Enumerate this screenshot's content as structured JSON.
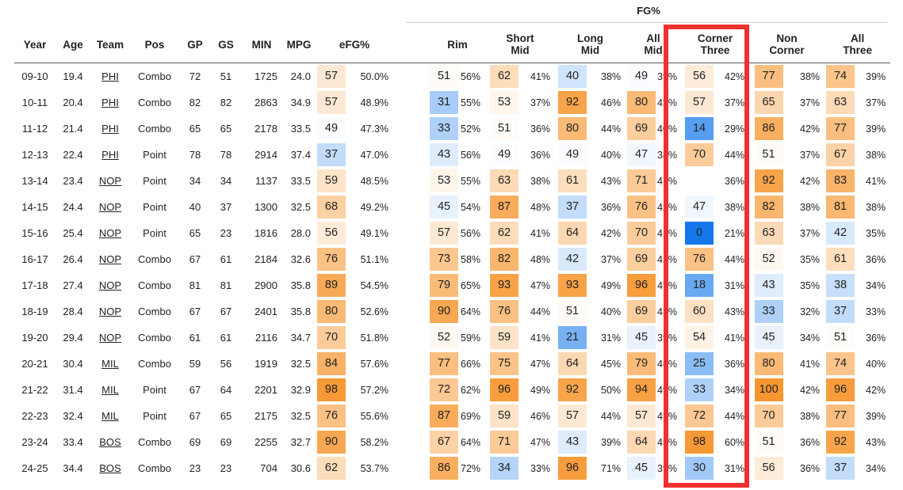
{
  "group_header": "FG%",
  "headers": {
    "year": "Year",
    "age": "Age",
    "team": "Team",
    "pos": "Pos",
    "gp": "GP",
    "gs": "GS",
    "min": "MIN",
    "mpg": "MPG",
    "efg": "eFG%",
    "rim": "Rim",
    "short_mid_1": "Short",
    "short_mid_2": "Mid",
    "long_mid_1": "Long",
    "long_mid_2": "Mid",
    "all_mid_1": "All",
    "all_mid_2": "Mid",
    "corner_three_1": "Corner",
    "corner_three_2": "Three",
    "non_corner_1": "Non",
    "non_corner_2": "Corner",
    "all_three_1": "All",
    "all_three_2": "Three"
  },
  "highlight_color": "#f03030",
  "rows": [
    {
      "year": "09-10",
      "age": "19.4",
      "team": "PHI",
      "pos": "Combo",
      "gp": "72",
      "gs": "51",
      "min": "1725",
      "mpg": "24.0",
      "efg_pctile": 57,
      "efg": "50.0%",
      "rim_pctile": 51,
      "rim": "56%",
      "smid_pctile": 62,
      "smid": "41%",
      "lmid_pctile": 40,
      "lmid": "38%",
      "amid_pctile": 49,
      "amid": "39%",
      "corner_pctile": 56,
      "corner": "42%",
      "noncorner_pctile": 77,
      "noncorner": "38%",
      "allthree_pctile": 74,
      "allthree": "39%"
    },
    {
      "year": "10-11",
      "age": "20.4",
      "team": "PHI",
      "pos": "Combo",
      "gp": "82",
      "gs": "82",
      "min": "2863",
      "mpg": "34.9",
      "efg_pctile": 57,
      "efg": "48.9%",
      "rim_pctile": 31,
      "rim": "55%",
      "smid_pctile": 53,
      "smid": "37%",
      "lmid_pctile": 92,
      "lmid": "46%",
      "amid_pctile": 80,
      "amid": "42%",
      "corner_pctile": 57,
      "corner": "37%",
      "noncorner_pctile": 65,
      "noncorner": "37%",
      "allthree_pctile": 63,
      "allthree": "37%"
    },
    {
      "year": "11-12",
      "age": "21.4",
      "team": "PHI",
      "pos": "Combo",
      "gp": "65",
      "gs": "65",
      "min": "2178",
      "mpg": "33.5",
      "efg_pctile": 49,
      "efg": "47.3%",
      "rim_pctile": 33,
      "rim": "52%",
      "smid_pctile": 51,
      "smid": "36%",
      "lmid_pctile": 80,
      "lmid": "44%",
      "amid_pctile": 69,
      "amid": "40%",
      "corner_pctile": 14,
      "corner": "29%",
      "noncorner_pctile": 86,
      "noncorner": "42%",
      "allthree_pctile": 77,
      "allthree": "39%"
    },
    {
      "year": "12-13",
      "age": "22.4",
      "team": "PHI",
      "pos": "Point",
      "gp": "78",
      "gs": "78",
      "min": "2914",
      "mpg": "37.4",
      "efg_pctile": 37,
      "efg": "47.0%",
      "rim_pctile": 43,
      "rim": "56%",
      "smid_pctile": 49,
      "smid": "36%",
      "lmid_pctile": 49,
      "lmid": "40%",
      "amid_pctile": 47,
      "amid": "38%",
      "corner_pctile": 70,
      "corner": "44%",
      "noncorner_pctile": 51,
      "noncorner": "37%",
      "allthree_pctile": 67,
      "allthree": "38%"
    },
    {
      "year": "13-14",
      "age": "23.4",
      "team": "NOP",
      "pos": "Point",
      "gp": "34",
      "gs": "34",
      "min": "1137",
      "mpg": "33.5",
      "efg_pctile": 59,
      "efg": "48.5%",
      "rim_pctile": 53,
      "rim": "55%",
      "smid_pctile": 63,
      "smid": "38%",
      "lmid_pctile": 61,
      "lmid": "43%",
      "amid_pctile": 71,
      "amid": "41%",
      "corner_pctile": null,
      "corner": "36%",
      "noncorner_pctile": 92,
      "noncorner": "42%",
      "allthree_pctile": 83,
      "allthree": "41%"
    },
    {
      "year": "14-15",
      "age": "24.4",
      "team": "NOP",
      "pos": "Point",
      "gp": "40",
      "gs": "37",
      "min": "1300",
      "mpg": "32.5",
      "efg_pctile": 68,
      "efg": "49.2%",
      "rim_pctile": 45,
      "rim": "54%",
      "smid_pctile": 87,
      "smid": "48%",
      "lmid_pctile": 37,
      "lmid": "36%",
      "amid_pctile": 76,
      "amid": "42%",
      "corner_pctile": 47,
      "corner": "38%",
      "noncorner_pctile": 82,
      "noncorner": "38%",
      "allthree_pctile": 81,
      "allthree": "38%"
    },
    {
      "year": "15-16",
      "age": "25.4",
      "team": "NOP",
      "pos": "Point",
      "gp": "65",
      "gs": "23",
      "min": "1816",
      "mpg": "28.0",
      "efg_pctile": 56,
      "efg": "49.1%",
      "rim_pctile": 57,
      "rim": "56%",
      "smid_pctile": 62,
      "smid": "41%",
      "lmid_pctile": 64,
      "lmid": "42%",
      "amid_pctile": 70,
      "amid": "41%",
      "corner_pctile": 0,
      "corner": "21%",
      "noncorner_pctile": 63,
      "noncorner": "37%",
      "allthree_pctile": 42,
      "allthree": "35%"
    },
    {
      "year": "16-17",
      "age": "26.4",
      "team": "NOP",
      "pos": "Combo",
      "gp": "67",
      "gs": "61",
      "min": "2184",
      "mpg": "32.6",
      "efg_pctile": 76,
      "efg": "51.1%",
      "rim_pctile": 73,
      "rim": "58%",
      "smid_pctile": 82,
      "smid": "48%",
      "lmid_pctile": 42,
      "lmid": "37%",
      "amid_pctile": 69,
      "amid": "42%",
      "corner_pctile": 76,
      "corner": "44%",
      "noncorner_pctile": 52,
      "noncorner": "35%",
      "allthree_pctile": 61,
      "allthree": "36%"
    },
    {
      "year": "17-18",
      "age": "27.4",
      "team": "NOP",
      "pos": "Combo",
      "gp": "81",
      "gs": "81",
      "min": "2900",
      "mpg": "35.8",
      "efg_pctile": 89,
      "efg": "54.5%",
      "rim_pctile": 79,
      "rim": "65%",
      "smid_pctile": 93,
      "smid": "47%",
      "lmid_pctile": 93,
      "lmid": "49%",
      "amid_pctile": 96,
      "amid": "47%",
      "corner_pctile": 18,
      "corner": "31%",
      "noncorner_pctile": 43,
      "noncorner": "35%",
      "allthree_pctile": 38,
      "allthree": "34%"
    },
    {
      "year": "18-19",
      "age": "28.4",
      "team": "NOP",
      "pos": "Combo",
      "gp": "67",
      "gs": "67",
      "min": "2401",
      "mpg": "35.8",
      "efg_pctile": 80,
      "efg": "52.6%",
      "rim_pctile": 90,
      "rim": "64%",
      "smid_pctile": 76,
      "smid": "44%",
      "lmid_pctile": 51,
      "lmid": "40%",
      "amid_pctile": 69,
      "amid": "43%",
      "corner_pctile": 60,
      "corner": "43%",
      "noncorner_pctile": 33,
      "noncorner": "32%",
      "allthree_pctile": 37,
      "allthree": "33%"
    },
    {
      "year": "19-20",
      "age": "29.4",
      "team": "NOP",
      "pos": "Combo",
      "gp": "61",
      "gs": "61",
      "min": "2116",
      "mpg": "34.7",
      "efg_pctile": 70,
      "efg": "51.8%",
      "rim_pctile": 52,
      "rim": "59%",
      "smid_pctile": 59,
      "smid": "41%",
      "lmid_pctile": 21,
      "lmid": "31%",
      "amid_pctile": 45,
      "amid": "39%",
      "corner_pctile": 54,
      "corner": "41%",
      "noncorner_pctile": 45,
      "noncorner": "34%",
      "allthree_pctile": 51,
      "allthree": "36%"
    },
    {
      "year": "20-21",
      "age": "30.4",
      "team": "MIL",
      "pos": "Combo",
      "gp": "59",
      "gs": "56",
      "min": "1919",
      "mpg": "32.5",
      "efg_pctile": 84,
      "efg": "57.6%",
      "rim_pctile": 77,
      "rim": "66%",
      "smid_pctile": 75,
      "smid": "47%",
      "lmid_pctile": 64,
      "lmid": "45%",
      "amid_pctile": 79,
      "amid": "46%",
      "corner_pctile": 25,
      "corner": "36%",
      "noncorner_pctile": 80,
      "noncorner": "41%",
      "allthree_pctile": 74,
      "allthree": "40%"
    },
    {
      "year": "21-22",
      "age": "31.4",
      "team": "MIL",
      "pos": "Point",
      "gp": "67",
      "gs": "64",
      "min": "2201",
      "mpg": "32.9",
      "efg_pctile": 98,
      "efg": "57.2%",
      "rim_pctile": 72,
      "rim": "62%",
      "smid_pctile": 96,
      "smid": "49%",
      "lmid_pctile": 92,
      "lmid": "50%",
      "amid_pctile": 94,
      "amid": "49%",
      "corner_pctile": 33,
      "corner": "34%",
      "noncorner_pctile": 100,
      "noncorner": "42%",
      "allthree_pctile": 96,
      "allthree": "42%"
    },
    {
      "year": "22-23",
      "age": "32.4",
      "team": "MIL",
      "pos": "Point",
      "gp": "67",
      "gs": "65",
      "min": "2175",
      "mpg": "32.5",
      "efg_pctile": 76,
      "efg": "55.6%",
      "rim_pctile": 87,
      "rim": "69%",
      "smid_pctile": 59,
      "smid": "46%",
      "lmid_pctile": 57,
      "lmid": "44%",
      "amid_pctile": 57,
      "amid": "45%",
      "corner_pctile": 72,
      "corner": "44%",
      "noncorner_pctile": 70,
      "noncorner": "38%",
      "allthree_pctile": 77,
      "allthree": "39%"
    },
    {
      "year": "23-24",
      "age": "33.4",
      "team": "BOS",
      "pos": "Combo",
      "gp": "69",
      "gs": "69",
      "min": "2255",
      "mpg": "32.7",
      "efg_pctile": 90,
      "efg": "58.2%",
      "rim_pctile": 67,
      "rim": "64%",
      "smid_pctile": 71,
      "smid": "47%",
      "lmid_pctile": 43,
      "lmid": "39%",
      "amid_pctile": 64,
      "amid": "45%",
      "corner_pctile": 98,
      "corner": "60%",
      "noncorner_pctile": 51,
      "noncorner": "36%",
      "allthree_pctile": 92,
      "allthree": "43%"
    },
    {
      "year": "24-25",
      "age": "34.4",
      "team": "BOS",
      "pos": "Combo",
      "gp": "23",
      "gs": "23",
      "min": "704",
      "mpg": "30.6",
      "efg_pctile": 62,
      "efg": "53.7%",
      "rim_pctile": 86,
      "rim": "72%",
      "smid_pctile": 34,
      "smid": "33%",
      "lmid_pctile": 96,
      "lmid": "71%",
      "amid_pctile": 45,
      "amid": "39%",
      "corner_pctile": 30,
      "corner": "31%",
      "noncorner_pctile": 56,
      "noncorner": "36%",
      "allthree_pctile": 37,
      "allthree": "34%"
    }
  ]
}
